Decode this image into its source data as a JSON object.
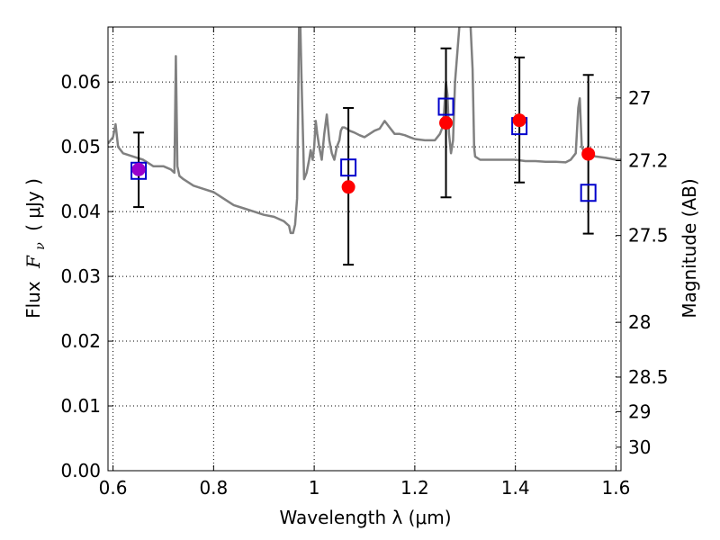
{
  "chart_data": {
    "type": "scatter",
    "xlabel": "Wavelength  λ (μm)",
    "ylabel_text": "Flux",
    "ylabel_symbol": "F",
    "ylabel_symbol_sub": "ν",
    "ylabel_unit": "(  μJy  )",
    "y2label": "Magnitude (AB)",
    "xlim": [
      0.59,
      1.61
    ],
    "ylim": [
      0.0,
      0.0685
    ],
    "xticks": [
      0.6,
      0.8,
      1.0,
      1.2,
      1.4,
      1.6
    ],
    "xtick_labels": [
      "0.6",
      "0.8",
      "1",
      "1.2",
      "1.4",
      "1.6"
    ],
    "yticks": [
      0.0,
      0.01,
      0.02,
      0.03,
      0.04,
      0.05,
      0.06
    ],
    "ytick_labels": [
      "0.00",
      "0.01",
      "0.02",
      "0.03",
      "0.04",
      "0.05",
      "0.06"
    ],
    "y2ticks": [
      27.0,
      27.2,
      27.5,
      28.0,
      28.5,
      29.0,
      30.0
    ],
    "y2tick_labels": [
      "27",
      "27.2",
      "27.5",
      "28",
      "28.5",
      "29",
      "30"
    ],
    "y2_scale": "AB magnitude = 23.9 - 2.5 log10(flux in μJy)",
    "grid": true,
    "colors": {
      "model": "#808080",
      "observed": "#ff0000",
      "model_photometry": "#0000cc",
      "errorbar": "#000000",
      "overlap": "#9900cc"
    },
    "model_spectrum": {
      "x": [
        0.59,
        0.6,
        0.605,
        0.61,
        0.62,
        0.64,
        0.66,
        0.68,
        0.7,
        0.715,
        0.722,
        0.725,
        0.728,
        0.732,
        0.74,
        0.76,
        0.78,
        0.8,
        0.82,
        0.84,
        0.86,
        0.88,
        0.9,
        0.92,
        0.94,
        0.95,
        0.953,
        0.958,
        0.962,
        0.966,
        0.97,
        0.972,
        0.975,
        0.98,
        0.985,
        0.99,
        0.993,
        0.997,
        1.0,
        1.003,
        1.006,
        1.01,
        1.015,
        1.02,
        1.025,
        1.03,
        1.035,
        1.04,
        1.045,
        1.05,
        1.053,
        1.056,
        1.06,
        1.065,
        1.07,
        1.08,
        1.09,
        1.1,
        1.11,
        1.12,
        1.13,
        1.14,
        1.15,
        1.16,
        1.17,
        1.18,
        1.19,
        1.2,
        1.22,
        1.24,
        1.25,
        1.255,
        1.258,
        1.262,
        1.265,
        1.268,
        1.272,
        1.276,
        1.28,
        1.29,
        1.3,
        1.31,
        1.315,
        1.318,
        1.32,
        1.33,
        1.34,
        1.36,
        1.38,
        1.4,
        1.42,
        1.44,
        1.46,
        1.48,
        1.5,
        1.51,
        1.52,
        1.525,
        1.528,
        1.532,
        1.538,
        1.545,
        1.56,
        1.58,
        1.6,
        1.61
      ],
      "y": [
        0.0505,
        0.0515,
        0.0535,
        0.05,
        0.049,
        0.0485,
        0.048,
        0.047,
        0.047,
        0.0465,
        0.046,
        0.064,
        0.047,
        0.0455,
        0.045,
        0.044,
        0.0435,
        0.043,
        0.042,
        0.041,
        0.0405,
        0.04,
        0.0395,
        0.0392,
        0.0385,
        0.0378,
        0.0367,
        0.0367,
        0.038,
        0.042,
        0.07,
        0.07,
        0.06,
        0.045,
        0.046,
        0.048,
        0.0495,
        0.048,
        0.05,
        0.054,
        0.052,
        0.05,
        0.048,
        0.052,
        0.055,
        0.051,
        0.049,
        0.048,
        0.05,
        0.051,
        0.0525,
        0.053,
        0.053,
        0.0528,
        0.0525,
        0.0522,
        0.0518,
        0.0515,
        0.052,
        0.0525,
        0.0528,
        0.054,
        0.053,
        0.052,
        0.052,
        0.0518,
        0.0515,
        0.0512,
        0.051,
        0.051,
        0.052,
        0.053,
        0.055,
        0.06,
        0.058,
        0.052,
        0.049,
        0.051,
        0.06,
        0.07,
        0.07,
        0.07,
        0.062,
        0.05,
        0.0485,
        0.048,
        0.048,
        0.048,
        0.048,
        0.048,
        0.0478,
        0.0478,
        0.0477,
        0.0477,
        0.0476,
        0.048,
        0.049,
        0.056,
        0.0575,
        0.05,
        0.049,
        0.0488,
        0.0485,
        0.0483,
        0.048,
        0.048
      ]
    },
    "series": [
      {
        "marker": "filled-circle",
        "color": "#ff0000",
        "x": [
          0.651,
          1.068,
          1.262,
          1.408,
          1.545
        ],
        "y": [
          0.0465,
          0.0438,
          0.0537,
          0.0541,
          0.0489
        ],
        "yerr_low": [
          0.0407,
          0.0318,
          0.0422,
          0.0445,
          0.0366
        ],
        "yerr_high": [
          0.0522,
          0.056,
          0.0652,
          0.0638,
          0.0611
        ]
      },
      {
        "marker": "open-square",
        "color": "#0000cc",
        "x": [
          0.651,
          1.068,
          1.262,
          1.408,
          1.545
        ],
        "y": [
          0.0463,
          0.0468,
          0.0562,
          0.0532,
          0.0429
        ]
      }
    ]
  }
}
